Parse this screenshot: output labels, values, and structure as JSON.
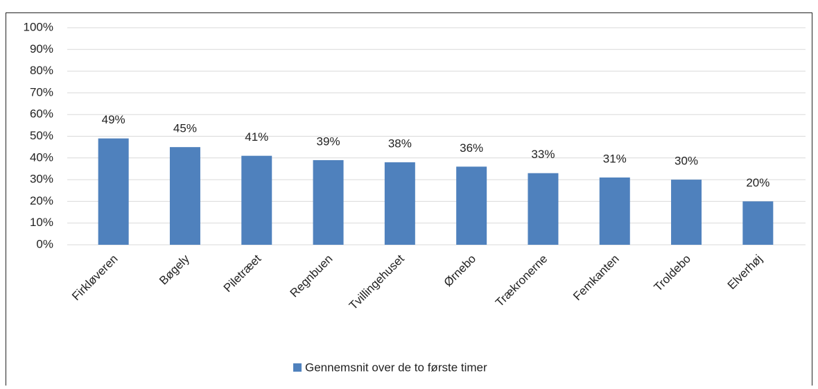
{
  "chart_data": {
    "type": "bar",
    "categories": [
      "Firkløveren",
      "Bøgely",
      "Piletræet",
      "Regnbuen",
      "Tvillingehuset",
      "Ørnebo",
      "Trækronerne",
      "Femkanten",
      "Troldebo",
      "Elverhøj"
    ],
    "series": [
      {
        "name": "Gennemsnit over de to første timer",
        "color": "#4f81bd",
        "values": [
          49,
          45,
          41,
          39,
          38,
          36,
          33,
          31,
          30,
          20
        ],
        "value_labels": [
          "49%",
          "45%",
          "41%",
          "39%",
          "38%",
          "36%",
          "33%",
          "31%",
          "30%",
          "20%"
        ]
      }
    ],
    "ylim": [
      0,
      100
    ],
    "yticks": [
      {
        "value": 0,
        "label": "0%"
      },
      {
        "value": 10,
        "label": "10%"
      },
      {
        "value": 20,
        "label": "20%"
      },
      {
        "value": 30,
        "label": "30%"
      },
      {
        "value": 40,
        "label": "40%"
      },
      {
        "value": 50,
        "label": "50%"
      },
      {
        "value": 60,
        "label": "60%"
      },
      {
        "value": 70,
        "label": "70%"
      },
      {
        "value": 80,
        "label": "80%"
      },
      {
        "value": 90,
        "label": "90%"
      },
      {
        "value": 100,
        "label": "100%"
      }
    ],
    "grid": true,
    "legend": "bottom"
  }
}
